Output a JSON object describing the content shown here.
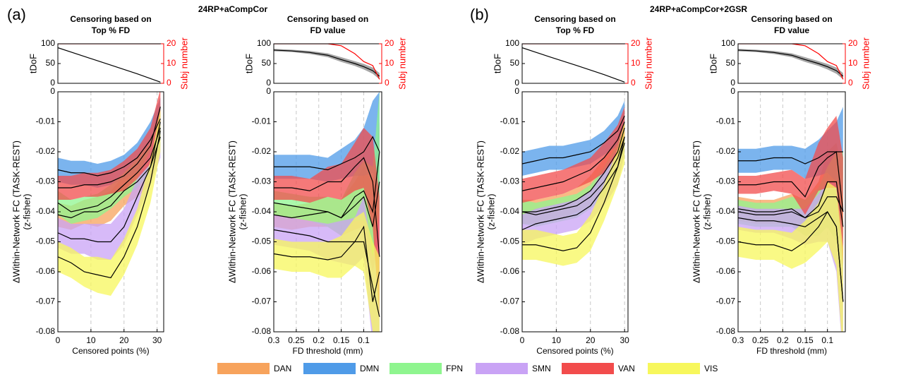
{
  "panels": [
    {
      "label": "(a)",
      "title": "24RP+aCompCor"
    },
    {
      "label": "(b)",
      "title": "24RP+aCompCor+2GSR"
    }
  ],
  "networks": [
    {
      "name": "DAN",
      "color": "#f7a35c"
    },
    {
      "name": "DMN",
      "color": "#4f9be8"
    },
    {
      "name": "FPN",
      "color": "#8ff58f"
    },
    {
      "name": "SMN",
      "color": "#c9a3f5"
    },
    {
      "name": "VAN",
      "color": "#f24c4c"
    },
    {
      "name": "VIS",
      "color": "#f7f75c"
    }
  ],
  "chart_data": [
    {
      "type": "line",
      "title": [
        "Censoring based on",
        "Top % FD"
      ],
      "ylabel": "tDoF",
      "y2label": "Subj number",
      "xlim": [
        0,
        32
      ],
      "ylim": [
        0,
        100
      ],
      "yticks": [
        0,
        50,
        100
      ],
      "y2lim": [
        0,
        20
      ],
      "y2ticks": [
        0,
        10,
        20
      ],
      "x": [
        0,
        8,
        16,
        24,
        31
      ],
      "series": [
        {
          "color": "#000000",
          "values": [
            90,
            68,
            46,
            24,
            3
          ]
        },
        {
          "color": "#ff0000",
          "axis": "y2",
          "values": [
            20,
            20,
            20,
            20,
            20
          ]
        }
      ]
    },
    {
      "type": "line",
      "xlabel": "Censored points (%)",
      "ylabel": [
        "ΔWithin-Network FC (TASK-REST)",
        "(z-fisher)"
      ],
      "xlim": [
        0,
        32
      ],
      "xticks": [
        0,
        10,
        20,
        30
      ],
      "ylim": [
        -0.08,
        0
      ],
      "yticks": [
        -0.08,
        -0.07,
        -0.06,
        -0.05,
        -0.04,
        -0.03,
        -0.02,
        -0.01,
        0
      ],
      "grid": true,
      "x": [
        0,
        4,
        8,
        12,
        16,
        20,
        24,
        28,
        31
      ],
      "series": [
        {
          "values": [
            -0.041,
            -0.042,
            -0.04,
            -0.04,
            -0.038,
            -0.033,
            -0.03,
            -0.025,
            -0.01
          ],
          "errors": [
            0.004,
            0.004,
            0.004,
            0.005,
            0.005,
            0.005,
            0.005,
            0.006,
            0.006
          ]
        },
        {
          "values": [
            -0.026,
            -0.027,
            -0.027,
            -0.028,
            -0.027,
            -0.025,
            -0.022,
            -0.016,
            -0.009
          ],
          "errors": [
            0.004,
            0.004,
            0.004,
            0.004,
            0.004,
            0.004,
            0.005,
            0.006,
            0.007
          ]
        },
        {
          "values": [
            -0.037,
            -0.04,
            -0.039,
            -0.038,
            -0.035,
            -0.031,
            -0.027,
            -0.022,
            -0.012
          ],
          "errors": [
            0.004,
            0.004,
            0.004,
            0.004,
            0.004,
            0.004,
            0.005,
            0.005,
            0.006
          ]
        },
        {
          "values": [
            -0.047,
            -0.049,
            -0.049,
            -0.05,
            -0.05,
            -0.045,
            -0.035,
            -0.025,
            -0.015
          ],
          "errors": [
            0.005,
            0.005,
            0.005,
            0.006,
            0.006,
            0.006,
            0.006,
            0.006,
            0.007
          ]
        },
        {
          "values": [
            -0.032,
            -0.032,
            -0.031,
            -0.031,
            -0.03,
            -0.028,
            -0.024,
            -0.018,
            -0.005
          ],
          "errors": [
            0.004,
            0.004,
            0.004,
            0.004,
            0.004,
            0.005,
            0.005,
            0.006,
            0.006
          ]
        },
        {
          "values": [
            -0.055,
            -0.057,
            -0.06,
            -0.061,
            -0.062,
            -0.055,
            -0.045,
            -0.03,
            -0.013
          ],
          "errors": [
            0.005,
            0.005,
            0.005,
            0.006,
            0.006,
            0.006,
            0.006,
            0.007,
            0.007
          ]
        }
      ]
    },
    {
      "type": "line",
      "title": [
        "Censoring based on",
        "FD value"
      ],
      "ylabel": "tDoF",
      "y2label": "Subj number",
      "xlim": [
        0.3,
        0.06
      ],
      "ylim": [
        0,
        100
      ],
      "yticks": [
        0,
        50,
        100
      ],
      "y2lim": [
        0,
        20
      ],
      "y2ticks": [
        0,
        10,
        20
      ],
      "x": [
        0.3,
        0.26,
        0.22,
        0.18,
        0.15,
        0.12,
        0.1,
        0.08,
        0.065
      ],
      "series": [
        {
          "color": "#000000",
          "values": [
            84,
            82,
            78,
            71,
            60,
            50,
            42,
            32,
            18
          ],
          "errors": [
            3,
            3,
            4,
            5,
            6,
            6,
            7,
            8,
            8
          ]
        },
        {
          "color": "#ff0000",
          "axis": "y2",
          "values": [
            20,
            20,
            20,
            20,
            19,
            15,
            11,
            9,
            2
          ]
        }
      ]
    },
    {
      "type": "line",
      "xlabel": "FD threshold (mm)",
      "ylabel": [
        "ΔWithin-Network FC (TASK-REST)",
        "(z-fisher)"
      ],
      "xlim": [
        0.3,
        0.06
      ],
      "xticks": [
        0.3,
        0.25,
        0.2,
        0.15,
        0.1
      ],
      "ylim": [
        -0.08,
        0
      ],
      "yticks": [
        -0.08,
        -0.07,
        -0.06,
        -0.05,
        -0.04,
        -0.03,
        -0.02,
        -0.01,
        0
      ],
      "grid": true,
      "x": [
        0.3,
        0.26,
        0.22,
        0.18,
        0.15,
        0.12,
        0.1,
        0.08,
        0.065
      ],
      "series": [
        {
          "values": [
            -0.041,
            -0.042,
            -0.041,
            -0.04,
            -0.042,
            -0.038,
            -0.035,
            -0.045,
            -0.03
          ],
          "errors": [
            0.004,
            0.004,
            0.004,
            0.005,
            0.006,
            0.008,
            0.01,
            0.015,
            0.02
          ]
        },
        {
          "values": [
            -0.025,
            -0.025,
            -0.025,
            -0.026,
            -0.024,
            -0.022,
            -0.02,
            -0.015,
            -0.02
          ],
          "errors": [
            0.004,
            0.004,
            0.004,
            0.004,
            0.005,
            0.006,
            0.008,
            0.012,
            0.02
          ]
        },
        {
          "values": [
            -0.037,
            -0.038,
            -0.039,
            -0.04,
            -0.042,
            -0.035,
            -0.033,
            -0.04,
            -0.02
          ],
          "errors": [
            0.004,
            0.004,
            0.004,
            0.005,
            0.006,
            0.008,
            0.01,
            0.015,
            0.02
          ]
        },
        {
          "values": [
            -0.046,
            -0.047,
            -0.048,
            -0.05,
            -0.05,
            -0.05,
            -0.045,
            -0.07,
            -0.06
          ],
          "errors": [
            0.005,
            0.005,
            0.005,
            0.006,
            0.007,
            0.008,
            0.01,
            0.015,
            0.02
          ]
        },
        {
          "values": [
            -0.032,
            -0.032,
            -0.033,
            -0.03,
            -0.03,
            -0.025,
            -0.022,
            -0.03,
            -0.055
          ],
          "errors": [
            0.004,
            0.004,
            0.004,
            0.005,
            0.006,
            0.008,
            0.01,
            0.015,
            0.02
          ]
        },
        {
          "values": [
            -0.054,
            -0.055,
            -0.055,
            -0.056,
            -0.055,
            -0.05,
            -0.05,
            -0.065,
            -0.075
          ],
          "errors": [
            0.005,
            0.005,
            0.005,
            0.006,
            0.007,
            0.008,
            0.01,
            0.015,
            0.02
          ]
        }
      ]
    },
    {
      "type": "line",
      "title": [
        "Censoring based on",
        "Top % FD"
      ],
      "ylabel": "tDoF",
      "y2label": "Subj number",
      "xlim": [
        0,
        31
      ],
      "ylim": [
        0,
        100
      ],
      "yticks": [
        0,
        50,
        100
      ],
      "y2lim": [
        0,
        20
      ],
      "y2ticks": [
        0,
        10,
        20
      ],
      "x": [
        0,
        8,
        16,
        24,
        30
      ],
      "series": [
        {
          "color": "#000000",
          "values": [
            90,
            67,
            45,
            22,
            3
          ]
        },
        {
          "color": "#ff0000",
          "axis": "y2",
          "values": [
            20,
            20,
            20,
            20,
            20
          ]
        }
      ]
    },
    {
      "type": "line",
      "xlabel": "Censored points (%)",
      "ylabel": [
        "ΔWithin-Network FC (TASK-REST)",
        "(z-fisher)"
      ],
      "xlim": [
        0,
        31
      ],
      "xticks": [
        0,
        10,
        20,
        30
      ],
      "ylim": [
        -0.08,
        0
      ],
      "yticks": [
        -0.08,
        -0.07,
        -0.06,
        -0.05,
        -0.04,
        -0.03,
        -0.02,
        -0.01,
        0
      ],
      "grid": true,
      "x": [
        0,
        4,
        8,
        12,
        16,
        20,
        24,
        28,
        30
      ],
      "series": [
        {
          "values": [
            -0.04,
            -0.04,
            -0.039,
            -0.038,
            -0.036,
            -0.033,
            -0.027,
            -0.02,
            -0.012
          ],
          "errors": [
            0.004,
            0.004,
            0.004,
            0.004,
            0.004,
            0.005,
            0.005,
            0.005,
            0.006
          ]
        },
        {
          "values": [
            -0.024,
            -0.023,
            -0.022,
            -0.022,
            -0.021,
            -0.02,
            -0.017,
            -0.013,
            -0.008
          ],
          "errors": [
            0.004,
            0.004,
            0.004,
            0.004,
            0.004,
            0.004,
            0.004,
            0.005,
            0.005
          ]
        },
        {
          "values": [
            -0.04,
            -0.041,
            -0.04,
            -0.039,
            -0.038,
            -0.035,
            -0.03,
            -0.022,
            -0.015
          ],
          "errors": [
            0.004,
            0.004,
            0.004,
            0.004,
            0.004,
            0.004,
            0.005,
            0.005,
            0.006
          ]
        },
        {
          "values": [
            -0.046,
            -0.044,
            -0.043,
            -0.042,
            -0.041,
            -0.038,
            -0.032,
            -0.025,
            -0.015
          ],
          "errors": [
            0.005,
            0.005,
            0.005,
            0.005,
            0.005,
            0.005,
            0.006,
            0.006,
            0.006
          ]
        },
        {
          "values": [
            -0.033,
            -0.032,
            -0.031,
            -0.03,
            -0.028,
            -0.026,
            -0.022,
            -0.016,
            -0.01
          ],
          "errors": [
            0.004,
            0.004,
            0.004,
            0.004,
            0.004,
            0.004,
            0.005,
            0.005,
            0.005
          ]
        },
        {
          "values": [
            -0.051,
            -0.051,
            -0.052,
            -0.053,
            -0.052,
            -0.047,
            -0.037,
            -0.025,
            -0.017
          ],
          "errors": [
            0.005,
            0.005,
            0.005,
            0.005,
            0.005,
            0.006,
            0.006,
            0.006,
            0.007
          ]
        }
      ]
    },
    {
      "type": "line",
      "title": [
        "Censoring based on",
        "FD value"
      ],
      "ylabel": "tDoF",
      "y2label": "Subj number",
      "xlim": [
        0.3,
        0.06
      ],
      "ylim": [
        0,
        100
      ],
      "yticks": [
        0,
        50,
        100
      ],
      "y2lim": [
        0,
        20
      ],
      "y2ticks": [
        0,
        10,
        20
      ],
      "x": [
        0.3,
        0.26,
        0.22,
        0.18,
        0.15,
        0.12,
        0.1,
        0.08,
        0.065
      ],
      "series": [
        {
          "color": "#000000",
          "values": [
            84,
            82,
            78,
            71,
            60,
            50,
            42,
            32,
            18
          ],
          "errors": [
            3,
            3,
            4,
            5,
            6,
            6,
            7,
            8,
            8
          ]
        },
        {
          "color": "#ff0000",
          "axis": "y2",
          "values": [
            20,
            20,
            20,
            20,
            19,
            15,
            11,
            9,
            2
          ]
        }
      ]
    },
    {
      "type": "line",
      "xlabel": "FD threshold (mm)",
      "ylabel": [
        "ΔWithin-Network FC (TASK-REST)",
        "(z-fisher)"
      ],
      "xlim": [
        0.3,
        0.06
      ],
      "xticks": [
        0.3,
        0.25,
        0.2,
        0.15,
        0.1
      ],
      "ylim": [
        -0.08,
        0
      ],
      "yticks": [
        -0.08,
        -0.07,
        -0.06,
        -0.05,
        -0.04,
        -0.03,
        -0.02,
        -0.01,
        0
      ],
      "grid": true,
      "x": [
        0.3,
        0.26,
        0.22,
        0.18,
        0.15,
        0.12,
        0.1,
        0.08,
        0.065
      ],
      "series": [
        {
          "values": [
            -0.039,
            -0.04,
            -0.04,
            -0.039,
            -0.042,
            -0.038,
            -0.03,
            -0.03,
            -0.045
          ],
          "errors": [
            0.004,
            0.004,
            0.004,
            0.005,
            0.006,
            0.008,
            0.01,
            0.013,
            0.018
          ]
        },
        {
          "values": [
            -0.023,
            -0.023,
            -0.022,
            -0.022,
            -0.024,
            -0.022,
            -0.02,
            -0.02,
            -0.02
          ],
          "errors": [
            0.004,
            0.004,
            0.004,
            0.004,
            0.005,
            0.006,
            0.007,
            0.01,
            0.015
          ]
        },
        {
          "values": [
            -0.04,
            -0.041,
            -0.041,
            -0.04,
            -0.042,
            -0.04,
            -0.035,
            -0.035,
            -0.04
          ],
          "errors": [
            0.004,
            0.004,
            0.004,
            0.005,
            0.006,
            0.008,
            0.01,
            0.015,
            0.02
          ]
        },
        {
          "values": [
            -0.042,
            -0.043,
            -0.043,
            -0.044,
            -0.045,
            -0.042,
            -0.04,
            -0.045,
            -0.07
          ],
          "errors": [
            0.004,
            0.004,
            0.004,
            0.005,
            0.006,
            0.008,
            0.01,
            0.015,
            0.02
          ]
        },
        {
          "values": [
            -0.031,
            -0.031,
            -0.03,
            -0.03,
            -0.035,
            -0.025,
            -0.022,
            -0.02,
            -0.04
          ],
          "errors": [
            0.003,
            0.003,
            0.003,
            0.004,
            0.006,
            0.008,
            0.01,
            0.012,
            0.018
          ]
        },
        {
          "values": [
            -0.05,
            -0.051,
            -0.051,
            -0.053,
            -0.05,
            -0.045,
            -0.04,
            -0.045,
            -0.07
          ],
          "errors": [
            0.005,
            0.005,
            0.005,
            0.006,
            0.007,
            0.008,
            0.01,
            0.013,
            0.018
          ]
        }
      ]
    }
  ]
}
